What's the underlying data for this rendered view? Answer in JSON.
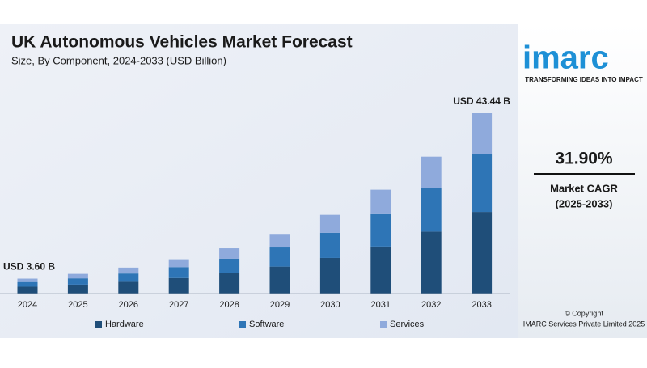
{
  "chart_data": {
    "type": "stacked_bar",
    "title": "UK Autonomous Vehicles Market Forecast",
    "subtitle": "Size, By Component, 2024-2033 (USD Billion)",
    "categories": [
      "2024",
      "2025",
      "2026",
      "2027",
      "2028",
      "2029",
      "2030",
      "2031",
      "2032",
      "2033"
    ],
    "series": [
      {
        "name": "Hardware",
        "color": "#1f4e79",
        "values": [
          1.66,
          2.16,
          2.84,
          3.74,
          4.93,
          6.5,
          8.58,
          11.32,
          14.92,
          19.66
        ]
      },
      {
        "name": "Software",
        "color": "#2e75b6",
        "values": [
          1.13,
          1.51,
          2.0,
          2.64,
          3.49,
          4.6,
          6.07,
          8.0,
          10.55,
          13.9
        ]
      },
      {
        "name": "Services",
        "color": "#8faadc",
        "values": [
          0.81,
          1.08,
          1.42,
          1.88,
          2.48,
          3.27,
          4.31,
          5.69,
          7.51,
          9.88
        ]
      }
    ],
    "total_labels": [
      {
        "category": "2024",
        "value": 3.6,
        "label": "USD 3.60 B"
      },
      {
        "category": "2033",
        "value": 43.44,
        "label": "USD 43.44 B"
      }
    ],
    "legend": "bottom"
  },
  "sidebar": {
    "logo": "imarc",
    "tagline": "TRANSFORMING IDEAS INTO IMPACT",
    "cagr": "31.90%",
    "cagr_label": "Market CAGR",
    "cagr_period": "(2025-2033)",
    "copyright": "© Copyright",
    "company": "IMARC Services Private Limited 2025"
  }
}
